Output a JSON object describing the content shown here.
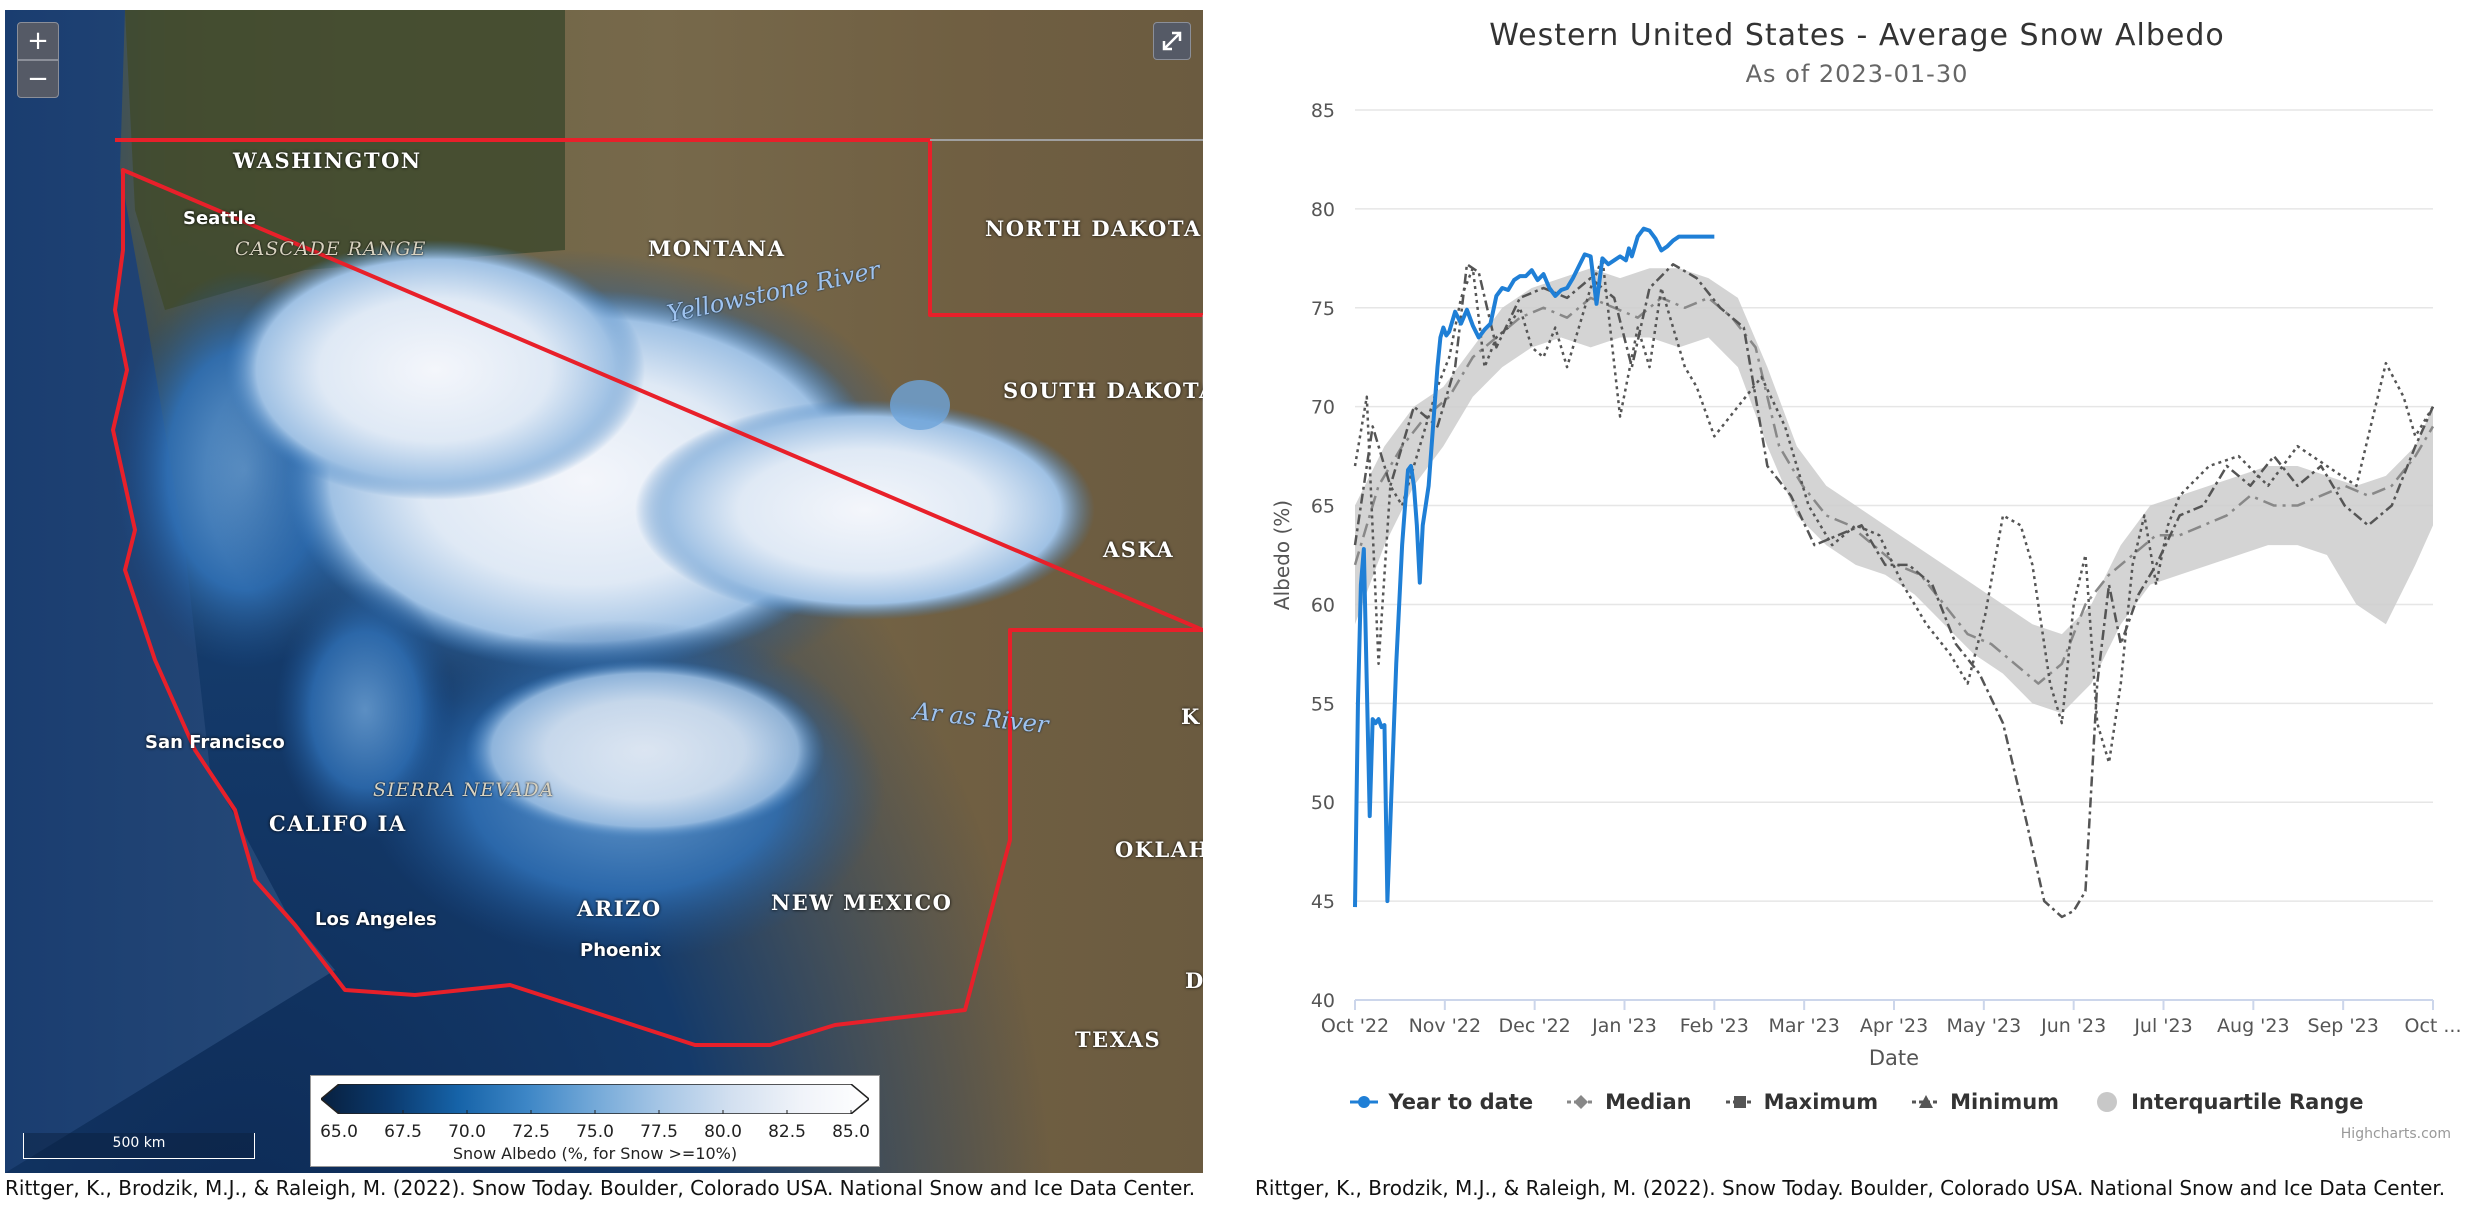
{
  "map": {
    "zoom_in": "+",
    "zoom_out": "−",
    "labels": {
      "washington": "WASHINGTON",
      "montana": "MONTANA",
      "north_dakota": "NORTH DAKOTA",
      "south_dakota": "SOUTH DAKOTA",
      "nebraska": "ASKA",
      "kansas": "K",
      "oklahoma": "OKLAH",
      "texas": "TEXAS",
      "new_mexico": "NEW MEXICO",
      "arizona": "ARIZO",
      "california": "CALIFO   IA",
      "colorado_partial": "D"
    },
    "cities": {
      "seattle": "Seattle",
      "san_francisco": "San Francisco",
      "los_angeles": "Los Angeles",
      "phoenix": "Phoenix"
    },
    "ranges": {
      "cascade": "CASCADE RANGE",
      "sierra": "SIERRA NEVADA"
    },
    "rivers": {
      "yellowstone": "Yellowstone River",
      "arkansas": "Ar     as River"
    },
    "legend": {
      "ticks": [
        "65.0",
        "67.5",
        "70.0",
        "72.5",
        "75.0",
        "77.5",
        "80.0",
        "82.5",
        "85.0"
      ],
      "title": "Snow Albedo (%, for Snow >=10%)",
      "colors": [
        "#08203f",
        "#0b3a6e",
        "#1663a8",
        "#3d86c6",
        "#74a9d8",
        "#a8c7e6",
        "#d3e0f0",
        "#f0f3f9",
        "#ffffff"
      ]
    },
    "scale_label": "500 km",
    "citation": "Rittger, K., Brodzik, M.J., & Raleigh, M. (2022). Snow Today. Boulder, Colorado USA. National Snow and Ice Data Center."
  },
  "chart": {
    "title": "Western United States - Average Snow Albedo",
    "subtitle": "As of 2023-01-30",
    "credit": "Highcharts.com",
    "citation": "Rittger, K., Brodzik, M.J., & Raleigh, M. (2022). Snow Today. Boulder, Colorado USA. National Snow and Ice Data Center.",
    "legend": [
      {
        "label": "Year to date",
        "icon": "circle-line-icon",
        "color": "#1f7fd6"
      },
      {
        "label": "Median",
        "icon": "diamond-line-icon",
        "color": "#888888"
      },
      {
        "label": "Maximum",
        "icon": "square-line-icon",
        "color": "#555555"
      },
      {
        "label": "Minimum",
        "icon": "triangle-line-icon",
        "color": "#555555"
      },
      {
        "label": "Interquartile Range",
        "icon": "circle-fill-icon",
        "color": "#c8c8c8"
      }
    ]
  },
  "chart_data": {
    "type": "line",
    "title": "Western United States - Average Snow Albedo",
    "subtitle": "As of 2023-01-30",
    "xlabel": "Date",
    "ylabel": "Albedo (%)",
    "ylim": [
      40,
      85
    ],
    "yticks": [
      40,
      45,
      50,
      55,
      60,
      65,
      70,
      75,
      80,
      85
    ],
    "xticks": [
      "Oct '22",
      "Nov '22",
      "Dec '22",
      "Jan '23",
      "Feb '23",
      "Mar '23",
      "Apr '23",
      "May '23",
      "Jun '23",
      "Jul '23",
      "Aug '23",
      "Sep '23",
      "Oct ..."
    ],
    "xlim_days": [
      0,
      366
    ],
    "legend_position": "bottom",
    "grid": true,
    "series": [
      {
        "name": "Year to date",
        "color": "#1f7fd6",
        "x": [
          0,
          1,
          2,
          3,
          4,
          5,
          6,
          7,
          8,
          9,
          10,
          11,
          12,
          13,
          14,
          15,
          16,
          17,
          18,
          19,
          20,
          21,
          22,
          23,
          24,
          25,
          26,
          27,
          28,
          29,
          30,
          31,
          32,
          33,
          34,
          36,
          38,
          40,
          42,
          44,
          46,
          48,
          50,
          52,
          54,
          56,
          58,
          60,
          62,
          64,
          66,
          68,
          70,
          72,
          74,
          76,
          78,
          80,
          82,
          84,
          86,
          88,
          90,
          92,
          93,
          94,
          96,
          98,
          100,
          102,
          104,
          106,
          108,
          110,
          112,
          114,
          116,
          118,
          120,
          122
        ],
        "y": [
          44.7,
          55,
          61,
          62.8,
          56,
          49.3,
          54.2,
          54.0,
          54.2,
          53.8,
          53.9,
          45.0,
          49,
          53,
          57,
          60,
          63,
          65,
          66.8,
          67.0,
          66,
          64,
          61.1,
          64,
          65,
          66,
          68,
          70,
          72,
          73.5,
          74,
          73.6,
          73.8,
          74.3,
          74.8,
          74.2,
          74.9,
          74.1,
          73.5,
          73.9,
          74.2,
          75.6,
          76.0,
          75.9,
          76.4,
          76.6,
          76.6,
          76.9,
          76.4,
          76.7,
          76.0,
          75.6,
          75.9,
          76.0,
          76.5,
          77.1,
          77.7,
          77.6,
          75.2,
          77.5,
          77.2,
          77.4,
          77.6,
          77.4,
          78.0,
          77.6,
          78.6,
          79.0,
          78.9,
          78.5,
          77.9,
          78.1,
          78.4,
          78.6,
          78.6,
          78.6,
          78.6,
          78.6,
          78.6,
          78.6
        ]
      },
      {
        "name": "Median",
        "color": "#888888",
        "x": [
          0,
          8,
          16,
          24,
          32,
          40,
          48,
          56,
          64,
          72,
          80,
          88,
          96,
          104,
          112,
          120,
          128,
          136,
          144,
          152,
          160,
          168,
          176,
          184,
          192,
          200,
          208,
          216,
          224,
          232,
          240,
          248,
          256,
          264,
          272,
          280,
          288,
          296,
          304,
          312,
          320,
          328,
          336,
          344,
          352,
          360,
          366
        ],
        "y": [
          62,
          66,
          68,
          69.5,
          70.5,
          72.5,
          73.5,
          74.5,
          75,
          74.5,
          75.5,
          75,
          74.5,
          75.5,
          75,
          75.5,
          74.5,
          73,
          68,
          66,
          64.5,
          64,
          63,
          62,
          61.5,
          60,
          58.5,
          58,
          57,
          56,
          57,
          60,
          61.5,
          62.5,
          63.5,
          63.5,
          64,
          64.5,
          65.5,
          65,
          65,
          65.5,
          66,
          65.5,
          66,
          67.5,
          69
        ]
      },
      {
        "name": "Maximum",
        "color": "#555555",
        "x": [
          0,
          6,
          12,
          20,
          28,
          34,
          38,
          42,
          48,
          56,
          64,
          72,
          80,
          88,
          94,
          100,
          108,
          116,
          124,
          132,
          140,
          148,
          156,
          164,
          172,
          180,
          188,
          196,
          204,
          212,
          220,
          228,
          234,
          240,
          244,
          248,
          252,
          256,
          260,
          266,
          272,
          280,
          288,
          296,
          304,
          312,
          320,
          328,
          336,
          344,
          352,
          360,
          366
        ],
        "y": [
          63,
          69,
          66,
          70,
          69,
          72,
          77.2,
          76.8,
          73,
          75.5,
          76,
          75.5,
          76.5,
          75.5,
          72,
          76,
          77.2,
          76.5,
          75,
          74,
          67,
          65.5,
          63,
          63.5,
          64,
          62,
          62,
          61,
          58,
          56.5,
          54,
          49,
          45,
          44.2,
          44.5,
          45.5,
          56,
          61,
          58,
          60.5,
          62,
          64.5,
          65,
          67,
          66,
          67.5,
          66,
          67,
          65,
          64,
          65,
          68,
          70
        ]
      },
      {
        "name": "Minimum",
        "color": "#555555",
        "x": [
          0,
          4,
          8,
          12,
          16,
          20,
          24,
          28,
          32,
          36,
          40,
          44,
          48,
          52,
          56,
          60,
          64,
          68,
          70,
          72,
          76,
          80,
          84,
          90,
          96,
          100,
          104,
          108,
          112,
          116,
          122,
          130,
          138,
          146,
          154,
          162,
          170,
          178,
          186,
          194,
          202,
          208,
          214,
          220,
          226,
          230,
          236,
          240,
          244,
          248,
          252,
          256,
          260,
          264,
          268,
          272,
          276,
          280,
          290,
          300,
          310,
          320,
          330,
          340,
          350,
          356,
          360,
          366
        ],
        "y": [
          67,
          70.5,
          57,
          66,
          65,
          67,
          69,
          71,
          72.5,
          75.5,
          77,
          72,
          73.5,
          74,
          75,
          73,
          72.5,
          74,
          73,
          72,
          74,
          76,
          77.5,
          69.5,
          74,
          72,
          76,
          74,
          72,
          71,
          68.5,
          70,
          71.5,
          69,
          65,
          63,
          64,
          63.5,
          61,
          59,
          57.5,
          56,
          59.5,
          64.5,
          64,
          62,
          56,
          54,
          60,
          62.5,
          54,
          52,
          56,
          62,
          64.5,
          61,
          64,
          65.5,
          67,
          67.5,
          66,
          68,
          67,
          66,
          72.2,
          70.5,
          68.5,
          70
        ]
      }
    ],
    "iqr": {
      "name": "Interquartile Range",
      "color": "#cccccc",
      "x": [
        0,
        10,
        20,
        30,
        40,
        50,
        60,
        70,
        80,
        90,
        100,
        110,
        120,
        130,
        140,
        150,
        160,
        170,
        180,
        190,
        200,
        210,
        220,
        230,
        240,
        250,
        260,
        270,
        280,
        290,
        300,
        310,
        320,
        330,
        340,
        350,
        360,
        366
      ],
      "low": [
        59,
        63,
        66,
        68,
        70.5,
        72,
        73,
        73.5,
        73,
        73.5,
        73.5,
        73,
        73.5,
        72,
        68,
        64.5,
        63,
        62,
        61.5,
        60.5,
        59,
        57.5,
        56.5,
        55,
        54.5,
        56,
        59,
        61,
        61.5,
        62,
        62.5,
        63,
        63,
        62.5,
        60,
        59,
        62,
        64
      ],
      "high": [
        65,
        68,
        70,
        71,
        73,
        75,
        76,
        76.5,
        77,
        76.5,
        77,
        77,
        76.5,
        75.5,
        72,
        68,
        66,
        65,
        64,
        63,
        62,
        61,
        60,
        59,
        58.5,
        60,
        63,
        65,
        65.5,
        66,
        66.5,
        67,
        67,
        66.5,
        66,
        66.5,
        68,
        70
      ]
    }
  }
}
